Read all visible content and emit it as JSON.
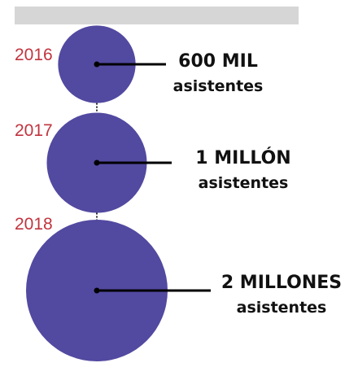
{
  "colors": {
    "bubble": "#5249a0",
    "year_text": "#c1343f",
    "label_text": "#111111",
    "connector": "#000000",
    "top_bar": "#d6d6d6"
  },
  "chart_data": {
    "type": "bubble",
    "unit": "asistentes",
    "points": [
      {
        "year": "2016",
        "attendees": 600000,
        "value_label": "600 MIL",
        "sub_label": "asistentes"
      },
      {
        "year": "2017",
        "attendees": 1000000,
        "value_label": "1 MILLÓN",
        "sub_label": "asistentes"
      },
      {
        "year": "2018",
        "attendees": 2000000,
        "value_label": "2 MILLONES",
        "sub_label": "asistentes"
      }
    ]
  }
}
